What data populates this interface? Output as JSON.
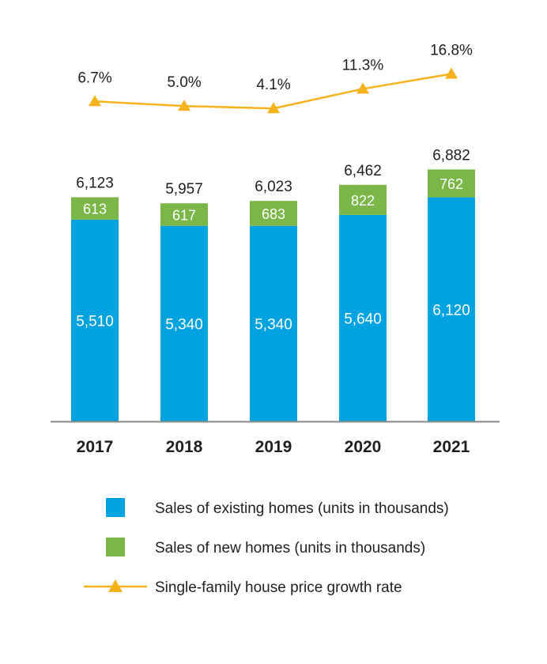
{
  "chart_data": {
    "type": "bar",
    "categories": [
      "2017",
      "2018",
      "2019",
      "2020",
      "2021"
    ],
    "series": [
      {
        "name": "Sales of existing homes (units in thousands)",
        "values": [
          5510,
          5340,
          5340,
          5640,
          6120
        ],
        "labels": [
          "5,510",
          "5,340",
          "5,340",
          "5,640",
          "6,120"
        ],
        "color": "#00a3e0"
      },
      {
        "name": "Sales of new homes (units in thousands)",
        "values": [
          613,
          617,
          683,
          822,
          762
        ],
        "labels": [
          "613",
          "617",
          "683",
          "822",
          "762"
        ],
        "color": "#7ab648"
      }
    ],
    "totals": {
      "values": [
        6123,
        5957,
        6023,
        6462,
        6882
      ],
      "labels": [
        "6,123",
        "5,957",
        "6,023",
        "6,462",
        "6,882"
      ]
    },
    "line_series": {
      "name": "Single-family house price growth rate",
      "type": "line",
      "values": [
        6.7,
        5.0,
        4.1,
        11.3,
        16.8
      ],
      "labels": [
        "6.7%",
        "5.0%",
        "4.1%",
        "11.3%",
        "16.8%"
      ],
      "color": "#f6b21b",
      "marker": "triangle"
    },
    "stacked": true,
    "grid": false,
    "legend_position": "bottom",
    "title": "",
    "xlabel": "",
    "ylabel": ""
  },
  "legend": {
    "items": [
      {
        "label": "Sales of existing homes (units in thousands)",
        "icon": "blue-square-icon",
        "color": "#00a3e0"
      },
      {
        "label": "Sales of new homes (units in thousands)",
        "icon": "green-square-icon",
        "color": "#7ab648"
      },
      {
        "label": "Single-family house price growth rate",
        "icon": "triangle-line-icon",
        "color": "#f6b21b"
      }
    ]
  },
  "colors": {
    "axis": "#8a8a8a",
    "text": "#1f1f1f",
    "white": "#ffffff"
  }
}
